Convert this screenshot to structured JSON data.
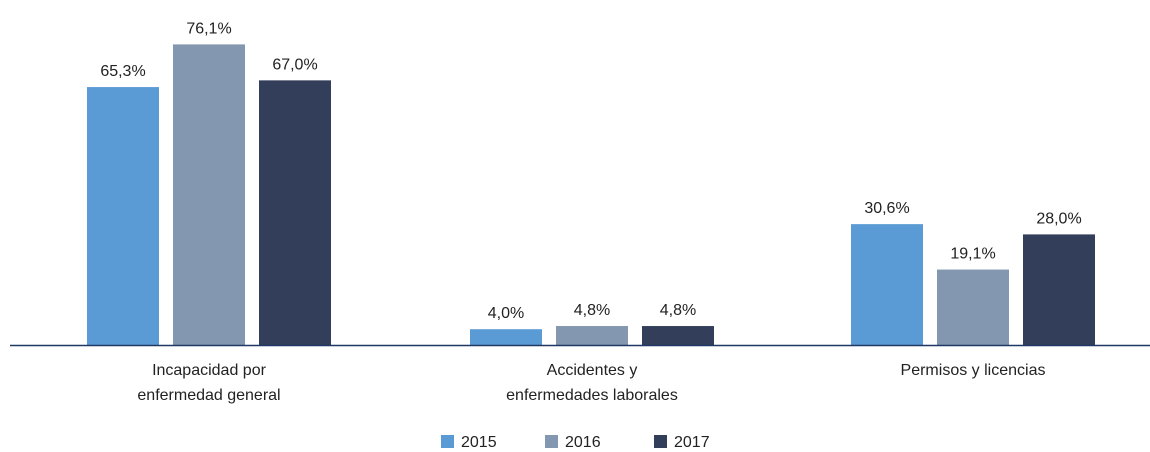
{
  "chart_data": {
    "type": "bar",
    "categories": [
      [
        "Incapacidad por",
        "enfermedad general"
      ],
      [
        "Accidentes y",
        "enfermedades laborales"
      ],
      [
        "Permisos y licencias"
      ]
    ],
    "series": [
      {
        "name": "2015",
        "color": "#5b9bd5",
        "values": [
          65.3,
          4.0,
          30.6
        ],
        "labels": [
          "65,3%",
          "4,0%",
          "30,6%"
        ]
      },
      {
        "name": "2016",
        "color": "#8497b0",
        "values": [
          76.1,
          4.8,
          19.1
        ],
        "labels": [
          "76,1%",
          "4,8%",
          "19,1%"
        ]
      },
      {
        "name": "2017",
        "color": "#333f5a",
        "values": [
          67.0,
          4.8,
          28.0
        ],
        "labels": [
          "67,0%",
          "4,8%",
          "28,0%"
        ]
      }
    ],
    "ylim": [
      0,
      100
    ],
    "grid": false,
    "legend_position": "bottom",
    "axis_color": "#1f3864"
  }
}
